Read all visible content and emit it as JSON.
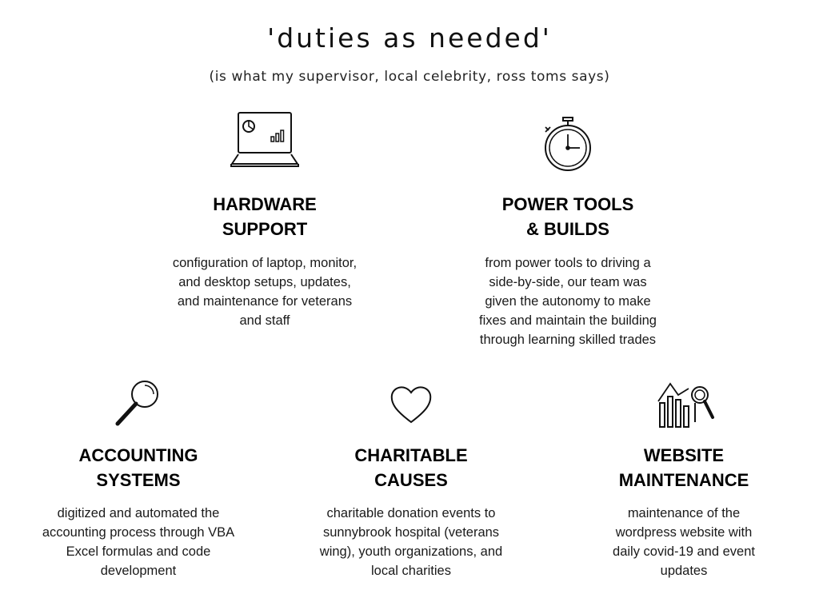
{
  "header": {
    "title": "'duties as needed'",
    "subtitle": "(is what my supervisor, local celebrity, ross toms says)"
  },
  "cards": [
    {
      "icon": "laptop-chart-icon",
      "heading": "HARDWARE\nSUPPORT",
      "description": "configuration of laptop, monitor,\nand desktop setups, updates,\nand maintenance for veterans\nand staff"
    },
    {
      "icon": "stopwatch-icon",
      "heading": "POWER TOOLS\n& BUILDS",
      "description": "from power tools to driving a\nside-by-side, our team was\ngiven the autonomy to make\nfixes and maintain the building\nthrough learning skilled trades"
    },
    {
      "icon": "magnifying-glass-icon",
      "heading": "ACCOUNTING\nSYSTEMS",
      "description": "digitized and automated the\naccounting process through VBA\nExcel formulas and code\ndevelopment"
    },
    {
      "icon": "heart-icon",
      "heading": "CHARITABLE\nCAUSES",
      "description": "charitable donation events to\nsunnybrook hospital (veterans\nwing), youth organizations, and\nlocal charities"
    },
    {
      "icon": "analytics-chart-icon",
      "heading": "WEBSITE\nMAINTENANCE",
      "description": "maintenance of the\nwordpress website with\ndaily covid-19 and event\nupdates"
    }
  ]
}
